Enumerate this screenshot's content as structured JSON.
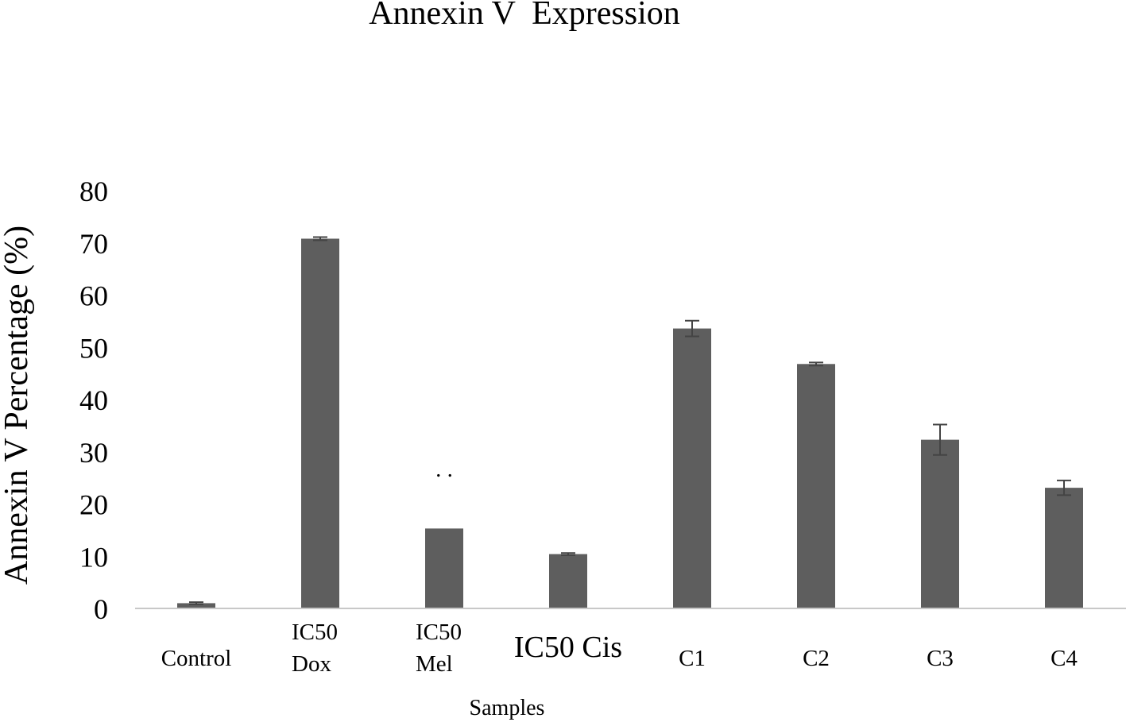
{
  "chart_data": {
    "type": "bar",
    "title": "Annexin V  Expression",
    "xlabel": "Samples",
    "ylabel": "Annexin V Percentage (%)",
    "ylim": [
      0,
      80
    ],
    "yticks": [
      "0",
      "10",
      "20",
      "30",
      "40",
      "50",
      "60",
      "70",
      "80"
    ],
    "grid": false,
    "categories": [
      "Control",
      "IC50 Dox",
      "IC50 Mel",
      "IC50 Cis",
      "C1",
      "C2",
      "C3",
      "C4"
    ],
    "category_lines": [
      [
        "Control"
      ],
      [
        "IC50",
        "Dox"
      ],
      [
        "IC50",
        "Mel"
      ],
      [
        "IC50 Cis"
      ],
      [
        "C1"
      ],
      [
        "C2"
      ],
      [
        "C3"
      ],
      [
        "C4"
      ]
    ],
    "values": [
      1.0,
      70.8,
      15.3,
      10.4,
      53.6,
      46.8,
      32.3,
      23.1
    ],
    "error": [
      0.2,
      0.3,
      0.0,
      0.2,
      1.5,
      0.3,
      2.9,
      1.4
    ],
    "annotations": [
      {
        "category": "IC50 Mel",
        "text": ". ."
      }
    ],
    "bar_color": "#5e5e5e",
    "axis_color": "#c8c8c8"
  }
}
